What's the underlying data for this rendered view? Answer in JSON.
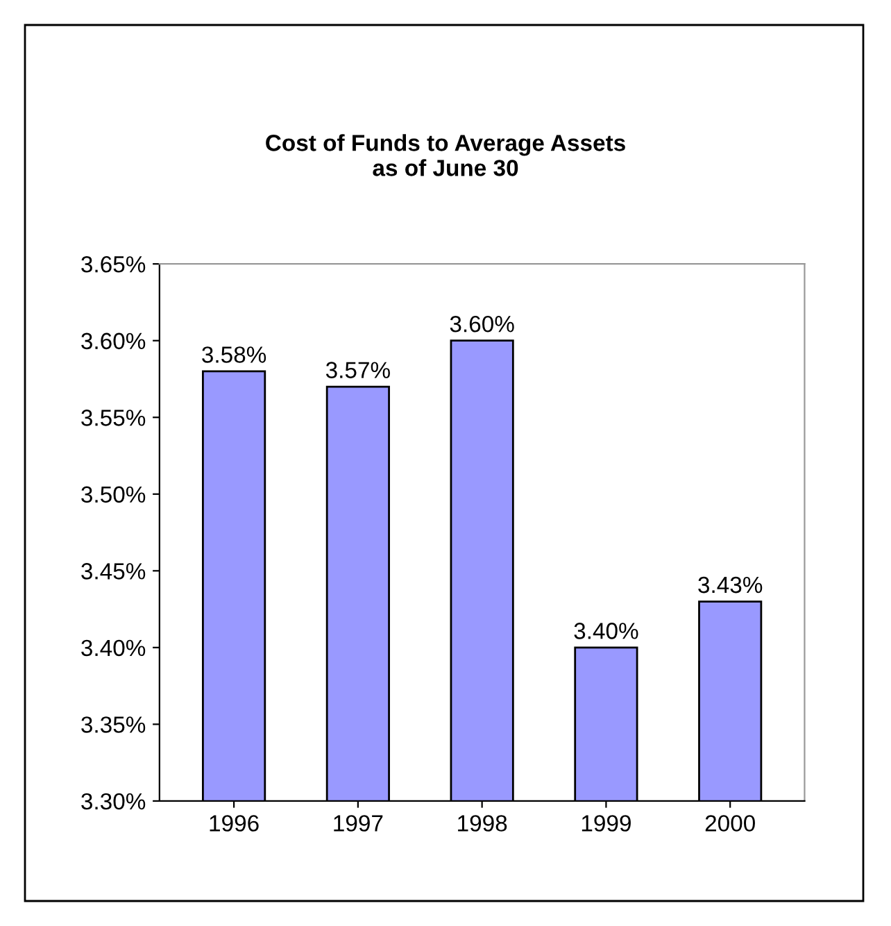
{
  "chart_data": {
    "type": "bar",
    "title": "Cost of Funds to Average Assets\nas of June 30",
    "categories": [
      "1996",
      "1997",
      "1998",
      "1999",
      "2000"
    ],
    "values": [
      3.58,
      3.57,
      3.6,
      3.4,
      3.43
    ],
    "value_labels": [
      "3.58%",
      "3.57%",
      "3.60%",
      "3.40%",
      "3.43%"
    ],
    "color": "#9999ff",
    "ylim": [
      3.3,
      3.65
    ],
    "yticks": [
      {
        "value": 3.3,
        "label": "3.30%"
      },
      {
        "value": 3.35,
        "label": "3.35%"
      },
      {
        "value": 3.4,
        "label": "3.40%"
      },
      {
        "value": 3.45,
        "label": "3.45%"
      },
      {
        "value": 3.5,
        "label": "3.50%"
      },
      {
        "value": 3.55,
        "label": "3.55%"
      },
      {
        "value": 3.6,
        "label": "3.60%"
      },
      {
        "value": 3.65,
        "label": "3.65%"
      }
    ],
    "grid": false
  }
}
